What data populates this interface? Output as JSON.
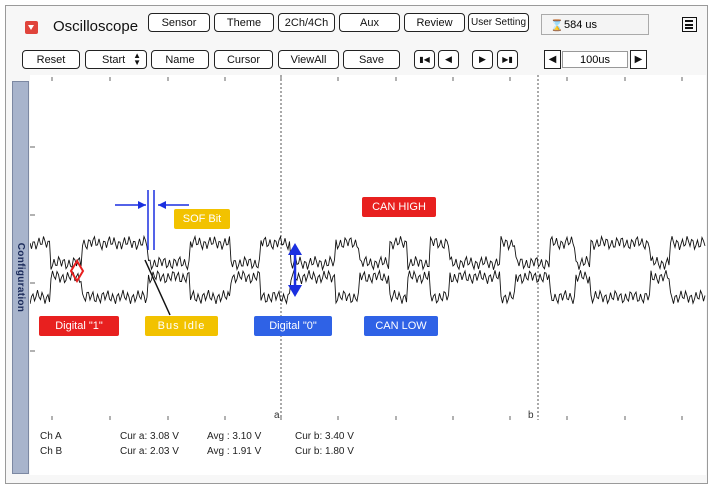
{
  "app": {
    "title": "Oscilloscope"
  },
  "top_buttons": [
    {
      "label": "Sensor"
    },
    {
      "label": "Theme"
    },
    {
      "label": "2Ch/4Ch"
    },
    {
      "label": "Aux"
    },
    {
      "label": "Review"
    },
    {
      "label": "User Setting"
    }
  ],
  "time_display": {
    "value": "584 us"
  },
  "toolbar": {
    "reset": "Reset",
    "start": "Start",
    "name": "Name",
    "cursor": "Cursor",
    "viewall": "ViewAll",
    "save": "Save"
  },
  "timebase": {
    "value": "100us"
  },
  "side_tab": {
    "label": "Configuration"
  },
  "cursors": {
    "a": "a",
    "b": "b"
  },
  "annotations": {
    "sof_bit": "SOF Bit",
    "can_high": "CAN HIGH",
    "digital_1": "Digital \"1\"",
    "bus_idle": "Bus Idle",
    "digital_0": "Digital \"0\"",
    "can_low": "CAN LOW"
  },
  "readouts": {
    "cha": {
      "label": "Ch A",
      "cur_a": "Cur a: 3.08 V",
      "avg": "Avg  : 3.10 V",
      "cur_b": "Cur b: 3.40 V"
    },
    "chb": {
      "label": "Ch B",
      "cur_a": "Cur a: 2.03 V",
      "avg": "Avg  : 1.91 V",
      "cur_b": "Cur b: 1.80 V"
    }
  },
  "colors": {
    "red": "#e8201f",
    "yellow": "#f2c200",
    "blue": "#2f62e6",
    "arrow": "#1a2fe0"
  }
}
